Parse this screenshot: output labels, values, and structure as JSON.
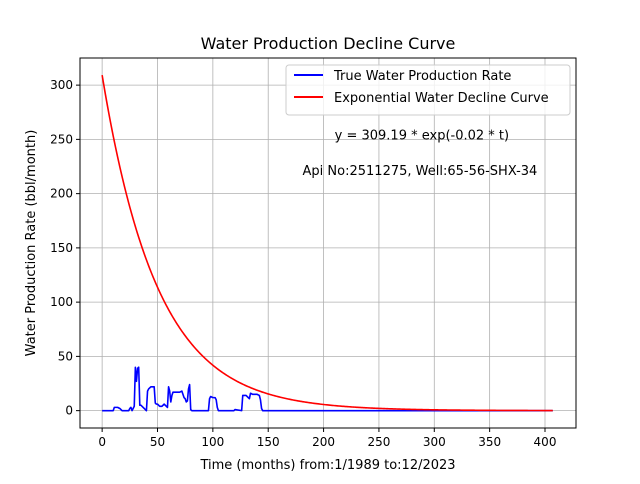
{
  "chart_data": {
    "type": "line",
    "title": "Water Production Decline Curve",
    "xlabel": "Time (months) from:1/1989 to:12/2023",
    "ylabel": "Water Production Rate (bbl/month)",
    "xlim": [
      -20,
      428
    ],
    "ylim": [
      -16,
      325
    ],
    "xticks": [
      0,
      50,
      100,
      150,
      200,
      250,
      300,
      350,
      400
    ],
    "yticks": [
      0,
      50,
      100,
      150,
      200,
      250,
      300
    ],
    "grid": true,
    "legend_position": "top-right",
    "annotations": [
      {
        "text": "y = 309.19 * exp(-0.02 * t)",
        "x": 210,
        "y": 250
      },
      {
        "text": "Api No:2511275, Well:65-56-SHX-34",
        "x": 181,
        "y": 217
      }
    ],
    "series": [
      {
        "name": "True Water Production Rate",
        "color": "#0000ff",
        "x": [
          0,
          10,
          11,
          12,
          14,
          16,
          17,
          18,
          20,
          22,
          24,
          25,
          26,
          27,
          28,
          29,
          30,
          31,
          32,
          33,
          34,
          35,
          38,
          40,
          41,
          42,
          44,
          46,
          47,
          48,
          49,
          50,
          52,
          54,
          56,
          58,
          59,
          60,
          61,
          62,
          63,
          64,
          66,
          68,
          70,
          72,
          74,
          75,
          76,
          77,
          78,
          79,
          80,
          81,
          82,
          83,
          96,
          97,
          98,
          100,
          102,
          103,
          104,
          105,
          118,
          119,
          120,
          126,
          127,
          128,
          130,
          132,
          133,
          134,
          136,
          138,
          140,
          142,
          143,
          144,
          145,
          407
        ],
        "y": [
          0,
          0,
          3,
          3,
          3,
          2,
          1,
          0,
          0,
          0,
          0,
          2,
          3,
          0,
          2,
          4,
          40,
          27,
          39,
          40,
          5,
          5,
          2,
          0,
          18,
          20,
          22,
          22,
          22,
          7,
          6,
          6,
          4,
          4,
          6,
          4,
          3,
          22,
          18,
          8,
          14,
          17,
          17,
          17,
          17,
          18,
          12,
          11,
          8,
          9,
          20,
          24,
          1,
          0,
          0,
          0,
          0,
          11,
          13,
          12,
          12,
          10,
          3,
          0,
          0,
          0,
          1,
          0,
          14,
          14,
          14,
          12,
          11,
          16,
          15,
          15,
          15,
          14,
          10,
          2,
          0,
          0
        ]
      },
      {
        "name": "Exponential Water Decline Curve",
        "color": "#ff0000",
        "function": {
          "a": 309.19,
          "b": 0.02,
          "x_start": 0,
          "x_end": 407
        }
      }
    ]
  }
}
